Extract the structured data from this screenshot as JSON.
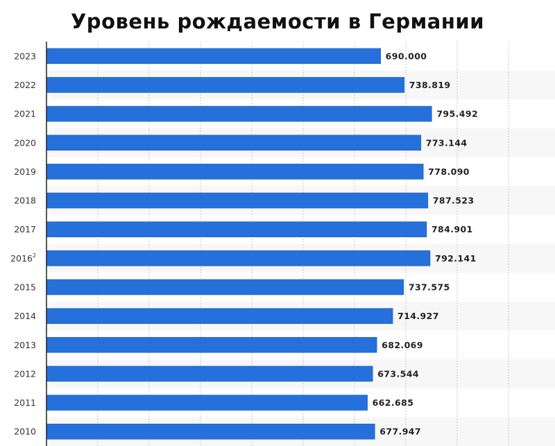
{
  "title": "Уровень рождаемости в Германии",
  "colors": {
    "bar": "#2570db",
    "bar_edge": "#1d5fc0",
    "band": "#f7f7f7",
    "grid": "#c9c9c9",
    "axis": "#222222"
  },
  "chart_data": {
    "type": "bar",
    "orientation": "horizontal",
    "title": "Уровень рождаемости в Германии",
    "xlim": [
      0,
      1050000
    ],
    "grid": true,
    "categories": [
      "2023",
      "2022",
      "2021",
      "2020",
      "2019",
      "2018",
      "2017",
      "2016",
      "2015",
      "2014",
      "2013",
      "2012",
      "2011",
      "2010"
    ],
    "category_suffix": [
      "",
      "",
      "",
      "",
      "",
      "",
      "",
      "2",
      "",
      "",
      "",
      "",
      "",
      ""
    ],
    "values": [
      690000,
      738819,
      795492,
      773144,
      778090,
      787523,
      784901,
      792141,
      737575,
      714927,
      682069,
      673544,
      662685,
      677947
    ],
    "value_labels": [
      "690.000",
      "738.819",
      "795.492",
      "773.144",
      "778.090",
      "787.523",
      "784.901",
      "792.141",
      "737.575",
      "714.927",
      "682.069",
      "673.544",
      "662.685",
      "677.947"
    ]
  }
}
